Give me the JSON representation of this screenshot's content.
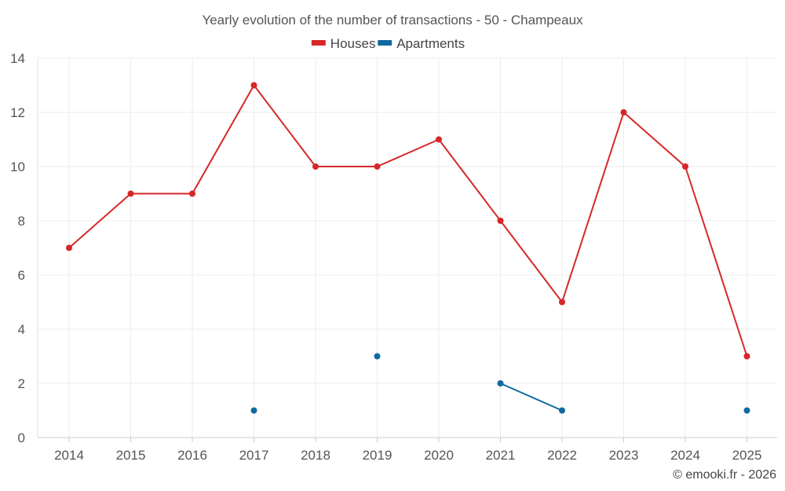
{
  "chart_data": {
    "type": "line",
    "title": "Yearly evolution of the number of transactions - 50 - Champeaux",
    "categories": [
      "2014",
      "2015",
      "2016",
      "2017",
      "2018",
      "2019",
      "2020",
      "2021",
      "2022",
      "2023",
      "2024",
      "2025"
    ],
    "series": [
      {
        "name": "Houses",
        "color": "#d62728",
        "values": [
          7,
          9,
          9,
          13,
          10,
          10,
          11,
          8,
          5,
          12,
          10,
          3
        ]
      },
      {
        "name": "Apartments",
        "color": "#0f6aa0",
        "values": [
          null,
          null,
          null,
          1,
          null,
          3,
          null,
          2,
          1,
          null,
          null,
          1
        ]
      }
    ],
    "ylim": [
      0,
      14
    ],
    "yticks": [
      0,
      2,
      4,
      6,
      8,
      10,
      12,
      14
    ],
    "yticklabels": [
      "0",
      "2",
      "4",
      "6",
      "8",
      "10",
      "12",
      "14"
    ],
    "xlabel": "",
    "ylabel": "",
    "grid": true,
    "legend_position": "top-center"
  },
  "credit": "© emooki.fr - 2026"
}
